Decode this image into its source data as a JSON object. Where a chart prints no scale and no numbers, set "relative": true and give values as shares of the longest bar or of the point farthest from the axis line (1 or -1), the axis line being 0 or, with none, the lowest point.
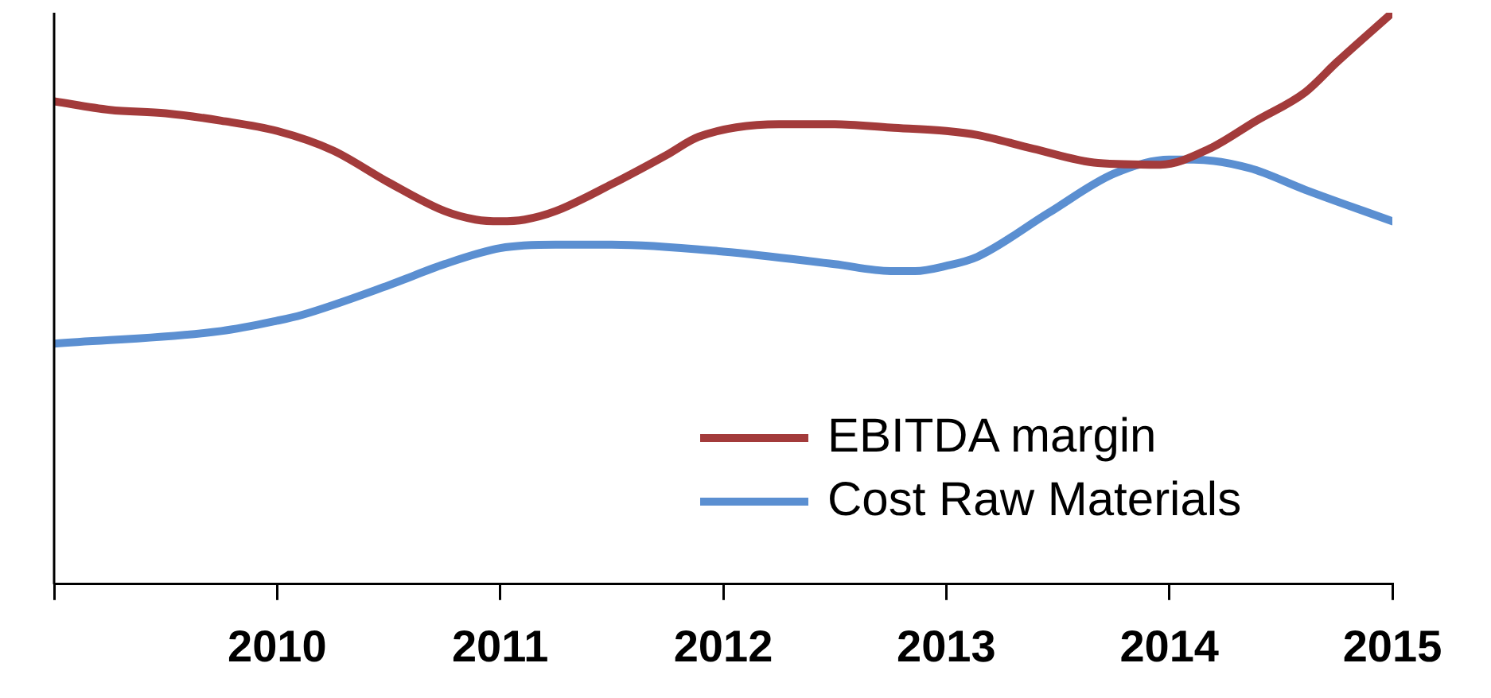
{
  "chart_data": {
    "type": "line",
    "relative": true,
    "legend": "bottom right",
    "grid": false,
    "marker": "none",
    "line_style": "solid",
    "xlim": [
      2009,
      2015
    ],
    "xticks": [
      {
        "value": 2009,
        "label": null
      },
      2010,
      2011,
      2012,
      2013,
      2014,
      2015
    ],
    "series": [
      {
        "name": "EBITDA margin",
        "color": "#a33b3b",
        "x": [
          2009,
          2009.25,
          2009.5,
          2009.75,
          2010,
          2010.25,
          2010.5,
          2010.75,
          2010.89,
          2011,
          2011.11,
          2011.25,
          2011.5,
          2011.75,
          2011.89,
          2012.25,
          2012.5,
          2012.75,
          2013,
          2013.14,
          2013.39,
          2013.68,
          2013.96,
          2014.18,
          2014.39,
          2014.61,
          2014.75,
          2015
        ],
        "values": [
          0.845,
          0.83,
          0.824,
          0.811,
          0.793,
          0.759,
          0.703,
          0.653,
          0.638,
          0.635,
          0.638,
          0.653,
          0.7,
          0.752,
          0.783,
          0.805,
          0.805,
          0.799,
          0.793,
          0.786,
          0.762,
          0.737,
          0.734,
          0.762,
          0.811,
          0.861,
          0.913,
          1
        ]
      },
      {
        "name": "Cost Raw Materials",
        "color": "#5b8fd1",
        "x": [
          2009,
          2009.75,
          2010,
          2010.11,
          2010.5,
          2010.75,
          2011,
          2011.25,
          2011.5,
          2012,
          2012.5,
          2012.75,
          2012.86,
          2013,
          2013.14,
          2013.46,
          2013.75,
          2014,
          2014.11,
          2014.36,
          2014.61,
          2015
        ],
        "values": [
          0.421,
          0.443,
          0.461,
          0.471,
          0.523,
          0.56,
          0.588,
          0.594,
          0.594,
          0.582,
          0.56,
          0.548,
          0.548,
          0.557,
          0.573,
          0.65,
          0.718,
          0.743,
          0.743,
          0.728,
          0.69,
          0.635
        ]
      }
    ]
  }
}
